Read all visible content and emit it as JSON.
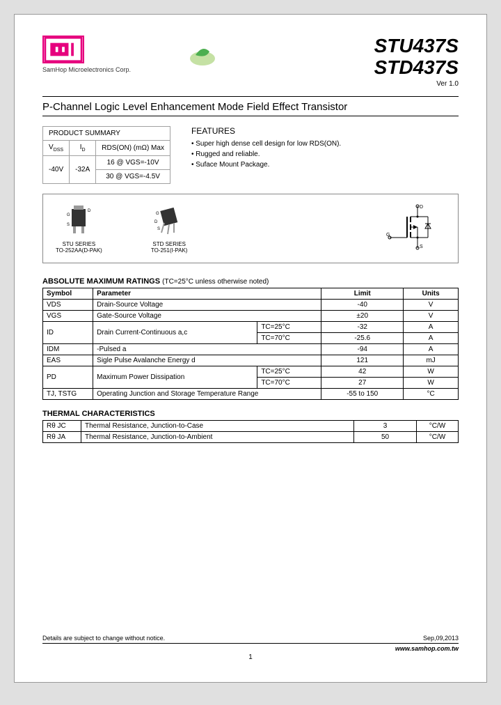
{
  "header": {
    "company": "SamHop Microelectronics Corp.",
    "part1": "STU437S",
    "part2": "STD437S",
    "version": "Ver 1.0"
  },
  "subtitle": "P-Channel Logic Level Enhancement Mode Field Effect Transistor",
  "summary": {
    "title": "PRODUCT SUMMARY",
    "h1": "VDSS",
    "h2": "ID",
    "h3": "RDS(ON) (mΩ) Max",
    "vdss": "-40V",
    "id": "-32A",
    "r1": "16 @ VGS=-10V",
    "r2": "30 @ VGS=-4.5V"
  },
  "features": {
    "title": "FEATURES",
    "items": [
      "Super high dense cell design for low RDS(ON).",
      "Rugged and reliable.",
      "Suface Mount Package."
    ]
  },
  "pkg": {
    "stu1": "STU SERIES",
    "stu2": "TO-252AA(D-PAK)",
    "std1": "STD SERIES",
    "std2": "TO-251(I-PAK)"
  },
  "amr": {
    "title": "ABSOLUTE MAXIMUM RATINGS",
    "note": "(TC=25°C unless otherwise noted)",
    "cols": {
      "sym": "Symbol",
      "param": "Parameter",
      "limit": "Limit",
      "units": "Units"
    },
    "rows": [
      {
        "sym": "VDS",
        "param": "Drain-Source Voltage",
        "cond": "",
        "limit": "-40",
        "units": "V",
        "span": 1
      },
      {
        "sym": "VGS",
        "param": "Gate-Source Voltage",
        "cond": "",
        "limit": "±20",
        "units": "V",
        "span": 1
      },
      {
        "sym": "ID",
        "param": "Drain Current-Continuous a,c",
        "cond": "TC=25°C",
        "limit": "-32",
        "units": "A",
        "span": 2
      },
      {
        "sym": "",
        "param": "",
        "cond": "TC=70°C",
        "limit": "-25.6",
        "units": "A",
        "span": 0
      },
      {
        "sym": "IDM",
        "param": "                -Pulsed a",
        "cond": "",
        "limit": "-94",
        "units": "A",
        "span": 1
      },
      {
        "sym": "EAS",
        "param": "Sigle Pulse Avalanche Energy d",
        "cond": "",
        "limit": "121",
        "units": "mJ",
        "span": 1
      },
      {
        "sym": "PD",
        "param": "Maximum Power Dissipation",
        "cond": "TC=25°C",
        "limit": "42",
        "units": "W",
        "span": 2
      },
      {
        "sym": "",
        "param": "",
        "cond": "TC=70°C",
        "limit": "27",
        "units": "W",
        "span": 0
      },
      {
        "sym": "TJ, TSTG",
        "param": "Operating Junction and Storage Temperature Range",
        "cond": "",
        "limit": "-55 to 150",
        "units": "°C",
        "span": 1
      }
    ]
  },
  "thermal": {
    "title": "THERMAL CHARACTERISTICS",
    "rows": [
      {
        "sym": "Rθ JC",
        "param": "Thermal Resistance, Junction-to-Case",
        "limit": "3",
        "units": "°C/W"
      },
      {
        "sym": "Rθ JA",
        "param": "Thermal Resistance, Junction-to-Ambient",
        "limit": "50",
        "units": "°C/W"
      }
    ]
  },
  "footer": {
    "note": "Details are subject to change without notice.",
    "date": "Sep,09,2013",
    "url": "www.samhop.com.tw",
    "page": "1"
  }
}
